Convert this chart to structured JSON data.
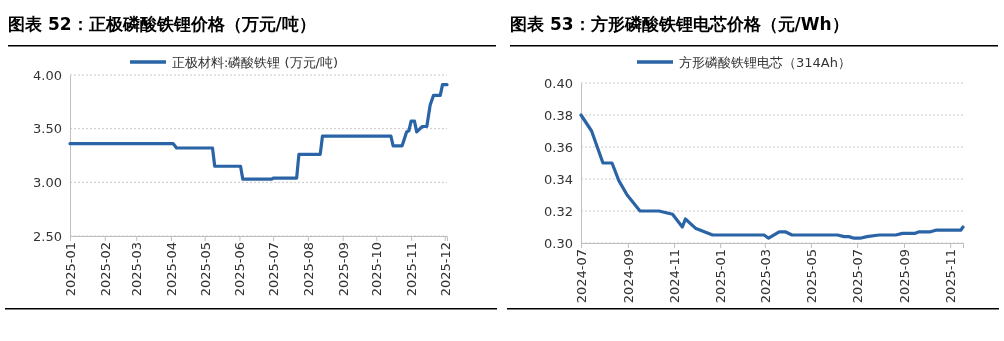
{
  "chart_data": [
    {
      "type": "line",
      "title": "图表 52：正极磷酸铁锂价格（万元/吨）",
      "legend": "top",
      "grid": "y",
      "marker": "none",
      "line_style": "solid",
      "xlim": [
        "2025-01-01",
        "2025-12-03"
      ],
      "xticks": [
        "2025-01",
        "2025-02",
        "2025-03",
        "2025-04",
        "2025-05",
        "2025-06",
        "2025-07",
        "2025-08",
        "2025-09",
        "2025-10",
        "2025-11",
        "2025-12"
      ],
      "ylim": [
        2.5,
        4.0
      ],
      "yticks": [
        {
          "value": 2.5,
          "label": "2.50"
        },
        {
          "value": 3.0,
          "label": "3.00"
        },
        {
          "value": 3.5,
          "label": "3.50"
        },
        {
          "value": 4.0,
          "label": "4.00"
        }
      ],
      "x": [
        "2025-01-01",
        "2025-04-03",
        "2025-04-06",
        "2025-05-08",
        "2025-05-10",
        "2025-06-02",
        "2025-06-04",
        "2025-06-30",
        "2025-07-01",
        "2025-07-22",
        "2025-07-24",
        "2025-08-12",
        "2025-08-14",
        "2025-10-14",
        "2025-10-16",
        "2025-10-24",
        "2025-10-28",
        "2025-10-30",
        "2025-11-01",
        "2025-11-04",
        "2025-11-06",
        "2025-11-11",
        "2025-11-15",
        "2025-11-18",
        "2025-11-21",
        "2025-11-27",
        "2025-11-29",
        "2025-12-03"
      ],
      "series": [
        {
          "name": "正极材料:磷酸铁锂 (万元/吨)",
          "color": "#2a64a6",
          "values": [
            3.36,
            3.36,
            3.32,
            3.32,
            3.15,
            3.15,
            3.03,
            3.03,
            3.04,
            3.04,
            3.26,
            3.26,
            3.43,
            3.43,
            3.34,
            3.34,
            3.47,
            3.48,
            3.57,
            3.57,
            3.47,
            3.52,
            3.52,
            3.72,
            3.81,
            3.81,
            3.91,
            3.91
          ]
        }
      ]
    },
    {
      "type": "line",
      "title": "图表 53：方形磷酸铁锂电芯价格（元/Wh）",
      "legend": "top",
      "grid": "y",
      "marker": "none",
      "line_style": "solid",
      "xlim": [
        "2024-07-01",
        "2025-11-18"
      ],
      "xticks": [
        "2024-07",
        "2024-09",
        "2024-11",
        "2025-01",
        "2025-03",
        "2025-05",
        "2025-07",
        "2025-09",
        "2025-11"
      ],
      "ylim": [
        0.3,
        0.4
      ],
      "yticks": [
        {
          "value": 0.3,
          "label": "0.30"
        },
        {
          "value": 0.32,
          "label": "0.32"
        },
        {
          "value": 0.34,
          "label": "0.34"
        },
        {
          "value": 0.36,
          "label": "0.36"
        },
        {
          "value": 0.38,
          "label": "0.38"
        },
        {
          "value": 0.4,
          "label": "0.40"
        }
      ],
      "x": [
        "2024-07-01",
        "2024-07-15",
        "2024-07-30",
        "2024-08-11",
        "2024-08-20",
        "2024-08-31",
        "2024-09-17",
        "2024-10-12",
        "2024-10-30",
        "2024-11-12",
        "2024-11-16",
        "2024-11-30",
        "2024-12-22",
        "2025-02-28",
        "2025-03-06",
        "2025-03-20",
        "2025-03-28",
        "2025-04-06",
        "2025-06-05",
        "2025-06-14",
        "2025-06-20",
        "2025-06-27",
        "2025-07-05",
        "2025-07-14",
        "2025-07-30",
        "2025-08-21",
        "2025-08-30",
        "2025-09-15",
        "2025-09-21",
        "2025-10-06",
        "2025-10-13",
        "2025-11-15",
        "2025-11-18"
      ],
      "series": [
        {
          "name": "方形磷酸铁锂电芯（314Ah）",
          "color": "#2a64a6",
          "values": [
            0.38,
            0.37,
            0.35,
            0.35,
            0.339,
            0.33,
            0.32,
            0.32,
            0.318,
            0.31,
            0.315,
            0.309,
            0.305,
            0.305,
            0.303,
            0.307,
            0.307,
            0.305,
            0.305,
            0.304,
            0.304,
            0.303,
            0.303,
            0.304,
            0.305,
            0.305,
            0.306,
            0.306,
            0.307,
            0.307,
            0.308,
            0.308,
            0.31
          ]
        }
      ]
    }
  ]
}
